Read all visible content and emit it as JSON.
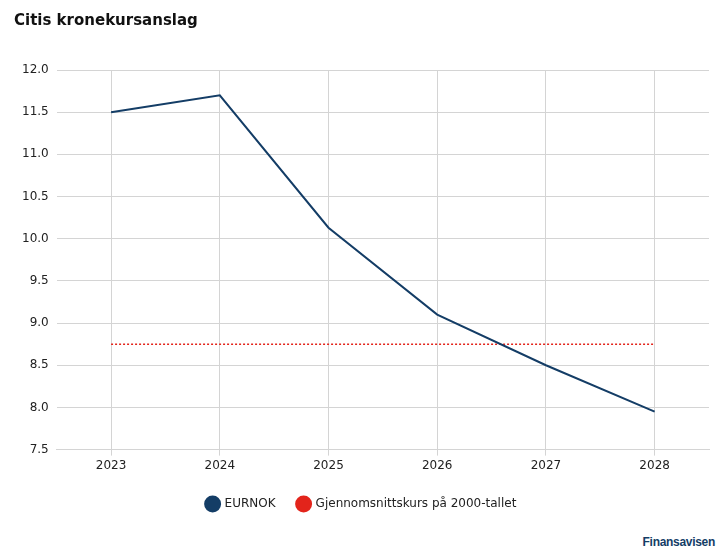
{
  "chart_data": {
    "type": "line",
    "title": "Citis kronekursanslag",
    "categories": [
      "2023",
      "2024",
      "2025",
      "2026",
      "2027",
      "2028"
    ],
    "series": [
      {
        "name": "EURNOK",
        "color": "#143d66",
        "values": [
          11.5,
          11.7,
          10.13,
          9.1,
          8.5,
          7.95
        ],
        "line_style": "solid",
        "marker": "none"
      },
      {
        "name": "Gjennomsnittskurs på 2000-tallet",
        "color": "#e3241b",
        "values": [
          8.75,
          8.75,
          8.75,
          8.75,
          8.75,
          8.75
        ],
        "line_style": "dotted",
        "marker": "none"
      }
    ],
    "ylim": [
      7.5,
      12
    ],
    "yticks": [
      7.5,
      {
        "value": 8,
        "label": "8.0"
      },
      8.5,
      {
        "value": 9,
        "label": "9.0"
      },
      9.5,
      {
        "value": 10,
        "label": "10.0"
      },
      10.5,
      {
        "value": 11,
        "label": "11.0"
      },
      11.5,
      {
        "value": 12,
        "label": "12.0"
      }
    ],
    "grid": true,
    "legend": "bottom",
    "source": "Finansavisen"
  }
}
